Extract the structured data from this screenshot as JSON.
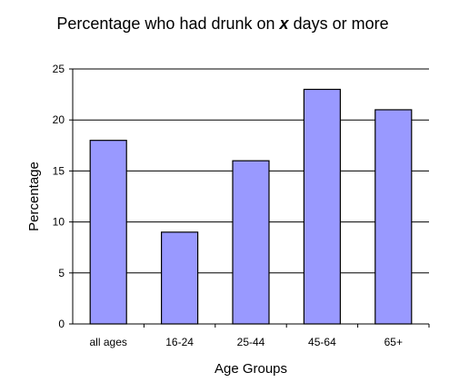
{
  "chart_data": {
    "type": "bar",
    "title": {
      "part1": "Percentage who had drunk on",
      "variable": "x",
      "part2": "days or more"
    },
    "xlabel": "Age Groups",
    "ylabel": "Percentage",
    "categories": [
      "all ages",
      "16-24",
      "25-44",
      "45-64",
      "65+"
    ],
    "values": [
      18,
      9,
      16,
      23,
      21
    ],
    "ylim": [
      0,
      25
    ],
    "yticks": [
      0,
      5,
      10,
      15,
      20,
      25
    ],
    "grid": true,
    "legend": "none",
    "bar_color": "#9999ff",
    "bar_stroke": "#000000"
  }
}
